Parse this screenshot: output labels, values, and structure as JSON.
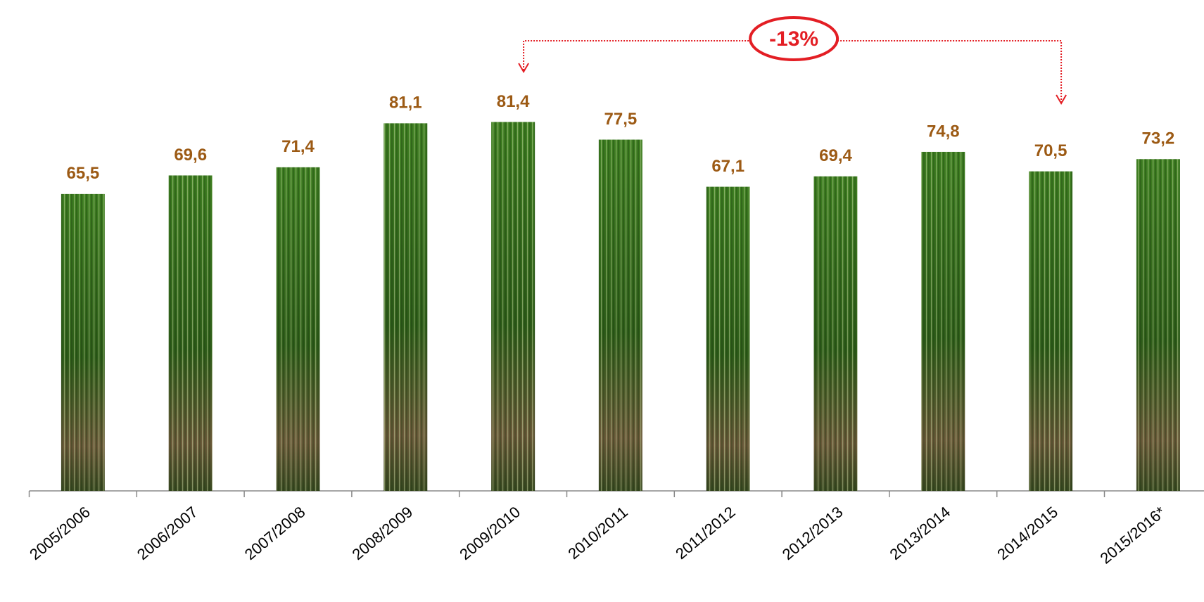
{
  "chart_data": {
    "type": "bar",
    "categories": [
      "2005/2006",
      "2006/2007",
      "2007/2008",
      "2008/2009",
      "2009/2010",
      "2010/2011",
      "2011/2012",
      "2012/2013",
      "2013/2014",
      "2014/2015",
      "2015/2016*"
    ],
    "values": [
      65.5,
      69.6,
      71.4,
      81.1,
      81.4,
      77.5,
      67.1,
      69.4,
      74.8,
      70.5,
      73.2
    ],
    "value_labels": [
      "65,5",
      "69,6",
      "71,4",
      "81,1",
      "81,4",
      "77,5",
      "67,1",
      "69,4",
      "74,8",
      "70,5",
      "73,2"
    ],
    "color": "#3f7f22",
    "ylim": [
      0,
      90
    ],
    "annotation": {
      "text": "-13%",
      "from": "2009/2010",
      "to": "2014/2015"
    }
  }
}
